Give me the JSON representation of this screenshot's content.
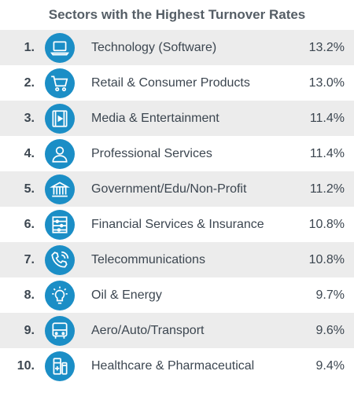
{
  "title": "Sectors with the Highest Turnover Rates",
  "sectors": [
    {
      "rank": "1.",
      "name": "Technology (Software)",
      "rate": "13.2%",
      "icon": "laptop-icon"
    },
    {
      "rank": "2.",
      "name": "Retail & Consumer Products",
      "rate": "13.0%",
      "icon": "shopping-cart-icon"
    },
    {
      "rank": "3.",
      "name": "Media & Entertainment",
      "rate": "11.4%",
      "icon": "film-icon"
    },
    {
      "rank": "4.",
      "name": "Professional Services",
      "rate": "11.4%",
      "icon": "person-icon"
    },
    {
      "rank": "5.",
      "name": "Government/Edu/Non-Profit",
      "rate": "11.2%",
      "icon": "government-building-icon"
    },
    {
      "rank": "6.",
      "name": "Financial Services & Insurance",
      "rate": "10.8%",
      "icon": "abacus-icon"
    },
    {
      "rank": "7.",
      "name": "Telecommunications",
      "rate": "10.8%",
      "icon": "phone-icon"
    },
    {
      "rank": "8.",
      "name": "Oil & Energy",
      "rate": "9.7%",
      "icon": "lightbulb-icon"
    },
    {
      "rank": "9.",
      "name": "Aero/Auto/Transport",
      "rate": "9.6%",
      "icon": "bus-icon"
    },
    {
      "rank": "10.",
      "name": "Healthcare & Pharmaceutical",
      "rate": "9.4%",
      "icon": "medicine-icon"
    }
  ],
  "colors": {
    "icon_bg": "#1b8ec6",
    "row_alt_bg": "#ececec",
    "text": "#3c4650",
    "title": "#555e66"
  }
}
